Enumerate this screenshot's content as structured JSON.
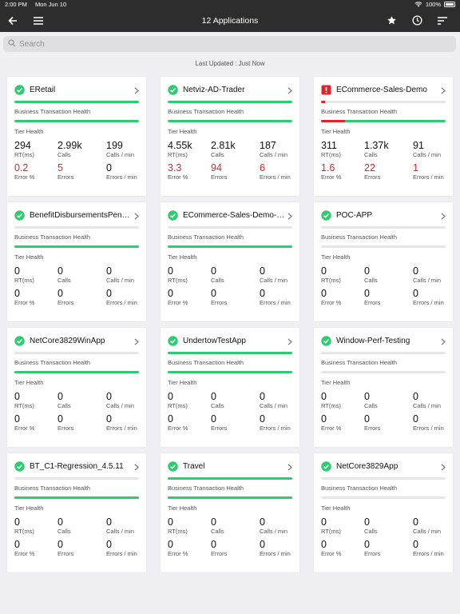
{
  "status_bar": {
    "time": "2:00 PM",
    "date": "Mon Jun 10",
    "battery": "100%",
    "battery_level": 1.0
  },
  "nav": {
    "title": "12 Applications",
    "icons": [
      "back-icon",
      "menu-icon",
      "star-icon",
      "clock-icon",
      "sort-icon"
    ]
  },
  "search": {
    "placeholder": "Search",
    "value": ""
  },
  "last_updated": "Last Updated :  Just Now",
  "colors": {
    "healthy": "#2ecc71",
    "critical": "#e8202a",
    "bar_empty": "#e6e6e6",
    "navbar": "#2d2d2d"
  },
  "metric_labels": {
    "rt": "RT(ms)",
    "calls": "Calls",
    "calls_per_min": "Calls / min",
    "error_pct": "Error %",
    "errors": "Errors",
    "errors_per_min": "Errors / min"
  },
  "section_labels": {
    "bt_health": "Business Transaction Health",
    "tier_health": "Tier Health"
  },
  "apps": [
    {
      "name": "ERetail",
      "status": "healthy",
      "bt_health": {
        "healthy": 1.0,
        "critical": 0.0
      },
      "tier_health": {
        "healthy": 1.0,
        "critical": 0.0
      },
      "rt": "294",
      "calls": "2.99k",
      "calls_per_min": "199",
      "error_pct": "0.2",
      "errors": "5",
      "errors_per_min": "0",
      "error_highlight": [
        true,
        true,
        false
      ]
    },
    {
      "name": "Netviz-AD-Trader",
      "status": "healthy",
      "bt_health": {
        "healthy": 1.0,
        "critical": 0.0
      },
      "tier_health": {
        "healthy": 1.0,
        "critical": 0.0
      },
      "rt": "4.55k",
      "calls": "2.81k",
      "calls_per_min": "187",
      "error_pct": "3.3",
      "errors": "94",
      "errors_per_min": "6",
      "error_highlight": [
        true,
        true,
        true
      ]
    },
    {
      "name": "ECommerce-Sales-Demo",
      "status": "critical",
      "bt_health": {
        "healthy": 0.0,
        "critical": 0.03
      },
      "tier_health": {
        "healthy": 0.81,
        "critical": 0.19
      },
      "rt": "311",
      "calls": "1.37k",
      "calls_per_min": "91",
      "error_pct": "1.6",
      "errors": "22",
      "errors_per_min": "1",
      "error_highlight": [
        true,
        true,
        true
      ]
    },
    {
      "name": "BenefitDisbursementsPension",
      "status": "healthy",
      "bt_health": {
        "healthy": 0.0,
        "critical": 0.0
      },
      "tier_health": {
        "healthy": 1.0,
        "critical": 0.0
      },
      "rt": "0",
      "calls": "0",
      "calls_per_min": "0",
      "error_pct": "0",
      "errors": "0",
      "errors_per_min": "0",
      "error_highlight": [
        false,
        false,
        false
      ]
    },
    {
      "name": "ECommerce-Sales-Demo-Fulfillment",
      "status": "healthy",
      "bt_health": {
        "healthy": 0.0,
        "critical": 0.0
      },
      "tier_health": {
        "healthy": 1.0,
        "critical": 0.0
      },
      "rt": "0",
      "calls": "0",
      "calls_per_min": "0",
      "error_pct": "0",
      "errors": "0",
      "errors_per_min": "0",
      "error_highlight": [
        false,
        false,
        false
      ]
    },
    {
      "name": "POC-APP",
      "status": "healthy",
      "bt_health": {
        "healthy": 0.0,
        "critical": 0.0
      },
      "tier_health": {
        "healthy": 0.0,
        "critical": 0.0
      },
      "rt": "0",
      "calls": "0",
      "calls_per_min": "0",
      "error_pct": "0",
      "errors": "0",
      "errors_per_min": "0",
      "error_highlight": [
        false,
        false,
        false
      ]
    },
    {
      "name": "NetCore3829WinApp",
      "status": "healthy",
      "bt_health": {
        "healthy": 0.0,
        "critical": 0.0
      },
      "tier_health": {
        "healthy": 1.0,
        "critical": 0.0
      },
      "rt": "0",
      "calls": "0",
      "calls_per_min": "0",
      "error_pct": "0",
      "errors": "0",
      "errors_per_min": "0",
      "error_highlight": [
        false,
        false,
        false
      ]
    },
    {
      "name": "UndertowTestApp",
      "status": "healthy",
      "bt_health": {
        "healthy": 1.0,
        "critical": 0.0
      },
      "tier_health": {
        "healthy": 1.0,
        "critical": 0.0
      },
      "rt": "0",
      "calls": "0",
      "calls_per_min": "0",
      "error_pct": "0",
      "errors": "0",
      "errors_per_min": "0",
      "error_highlight": [
        false,
        false,
        false
      ]
    },
    {
      "name": "Window-Perf-Testing",
      "status": "healthy",
      "bt_health": {
        "healthy": 0.0,
        "critical": 0.0
      },
      "tier_health": {
        "healthy": 0.0,
        "critical": 0.0
      },
      "rt": "0",
      "calls": "0",
      "calls_per_min": "0",
      "error_pct": "0",
      "errors": "0",
      "errors_per_min": "0",
      "error_highlight": [
        false,
        false,
        false
      ]
    },
    {
      "name": "BT_C1-Regression_4.5.11",
      "status": "healthy",
      "bt_health": {
        "healthy": 0.0,
        "critical": 0.0
      },
      "tier_health": {
        "healthy": 1.0,
        "critical": 0.0
      },
      "rt": "0",
      "calls": "0",
      "calls_per_min": "0",
      "error_pct": "0",
      "errors": "0",
      "errors_per_min": "0",
      "error_highlight": [
        false,
        false,
        false
      ]
    },
    {
      "name": "Travel",
      "status": "healthy",
      "bt_health": {
        "healthy": 1.0,
        "critical": 0.0
      },
      "tier_health": {
        "healthy": 1.0,
        "critical": 0.0
      },
      "rt": "0",
      "calls": "0",
      "calls_per_min": "0",
      "error_pct": "0",
      "errors": "0",
      "errors_per_min": "0",
      "error_highlight": [
        false,
        false,
        false
      ]
    },
    {
      "name": "NetCore3829App",
      "status": "healthy",
      "bt_health": {
        "healthy": 0.0,
        "critical": 0.0
      },
      "tier_health": {
        "healthy": 0.0,
        "critical": 0.0
      },
      "rt": "0",
      "calls": "0",
      "calls_per_min": "0",
      "error_pct": "0",
      "errors": "0",
      "errors_per_min": "0",
      "error_highlight": [
        false,
        false,
        false
      ]
    }
  ]
}
